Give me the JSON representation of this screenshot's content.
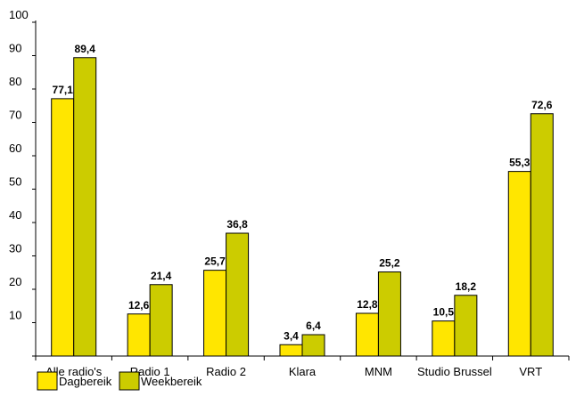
{
  "chart_data": {
    "type": "bar",
    "categories": [
      "Alle radio's",
      "Radio 1",
      "Radio 2",
      "Klara",
      "MNM",
      "Studio Brussel",
      "VRT"
    ],
    "series": [
      {
        "name": "Dagbereik",
        "values": [
          77.1,
          12.6,
          25.7,
          3.4,
          12.8,
          10.5,
          55.3
        ],
        "labels": [
          "77,1",
          "12,6",
          "25,7",
          "3,4",
          "12,8",
          "10,5",
          "55,3"
        ],
        "color": "#FFE600"
      },
      {
        "name": "Weekbereik",
        "values": [
          89.4,
          21.4,
          36.8,
          6.4,
          25.2,
          18.2,
          72.6
        ],
        "labels": [
          "89,4",
          "21,4",
          "36,8",
          "6,4",
          "25,2",
          "18,2",
          "72,6"
        ],
        "color": "#CCCC00"
      }
    ],
    "ylim": [
      0,
      100
    ],
    "yticks": [
      10,
      20,
      30,
      40,
      50,
      60,
      70,
      80,
      90,
      100
    ],
    "grid": false,
    "legend": "bottom-left",
    "title": "",
    "xlabel": "",
    "ylabel": ""
  }
}
